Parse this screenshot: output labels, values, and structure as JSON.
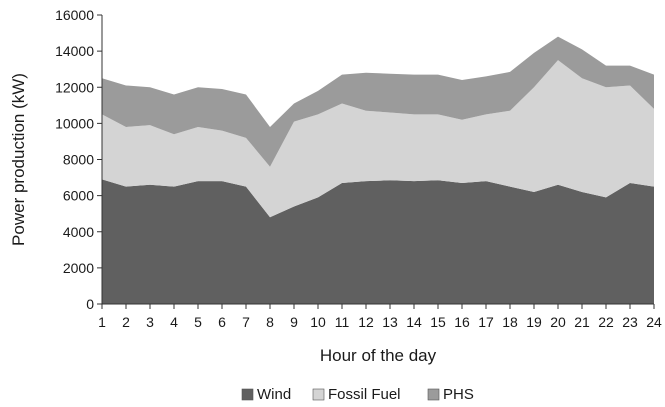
{
  "chart_data": {
    "type": "area",
    "stacked": true,
    "xlabel": "Hour of the day",
    "ylabel": "Power production (kW)",
    "x": [
      1,
      2,
      3,
      4,
      5,
      6,
      7,
      8,
      9,
      10,
      11,
      12,
      13,
      14,
      15,
      16,
      17,
      18,
      19,
      20,
      21,
      22,
      23,
      24
    ],
    "xlim": [
      1,
      24
    ],
    "ylim": [
      0,
      16000
    ],
    "yticks": [
      0,
      2000,
      4000,
      6000,
      8000,
      10000,
      12000,
      14000,
      16000
    ],
    "grid": false,
    "legend_position": "bottom",
    "series": [
      {
        "name": "Wind",
        "color": "#606060",
        "values": [
          6900,
          6500,
          6600,
          6500,
          6800,
          6800,
          6500,
          4800,
          5400,
          5900,
          6700,
          6800,
          6850,
          6800,
          6850,
          6700,
          6800,
          6500,
          6200,
          6600,
          6200,
          5900,
          6700,
          6500
        ]
      },
      {
        "name": "Fossil Fuel",
        "color": "#d4d4d4",
        "values": [
          3600,
          3300,
          3300,
          2900,
          3000,
          2800,
          2700,
          2800,
          4700,
          4600,
          4400,
          3900,
          3750,
          3700,
          3650,
          3500,
          3700,
          4200,
          5800,
          6900,
          6300,
          6100,
          5400,
          4300
        ]
      },
      {
        "name": "PHS",
        "color": "#9b9b9b",
        "values": [
          2000,
          2300,
          2100,
          2200,
          2200,
          2300,
          2400,
          2200,
          1000,
          1300,
          1600,
          2100,
          2150,
          2200,
          2200,
          2200,
          2100,
          2150,
          1900,
          1300,
          1600,
          1200,
          1100,
          1900
        ]
      }
    ]
  }
}
